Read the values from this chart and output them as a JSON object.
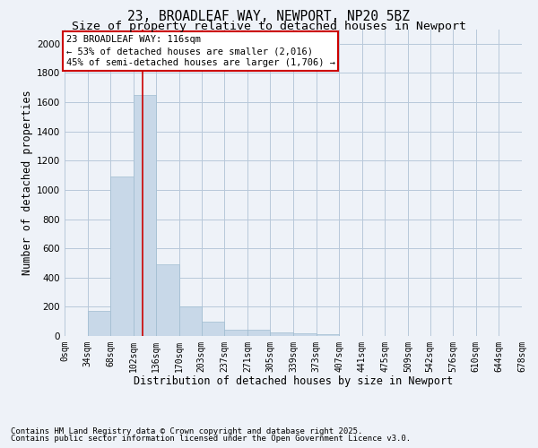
{
  "title1": "23, BROADLEAF WAY, NEWPORT, NP20 5BZ",
  "title2": "Size of property relative to detached houses in Newport",
  "xlabel": "Distribution of detached houses by size in Newport",
  "ylabel": "Number of detached properties",
  "bar_color": "#c8d8e8",
  "bar_edgecolor": "#a0bcd0",
  "bar_linewidth": 0.5,
  "vline_x": 116,
  "vline_color": "#cc0000",
  "annotation_box_text": "23 BROADLEAF WAY: 116sqm\n← 53% of detached houses are smaller (2,016)\n45% of semi-detached houses are larger (1,706) →",
  "annotation_box_color": "#cc0000",
  "annotation_box_facecolor": "white",
  "footnote1": "Contains HM Land Registry data © Crown copyright and database right 2025.",
  "footnote2": "Contains public sector information licensed under the Open Government Licence v3.0.",
  "bg_color": "#eef2f8",
  "ylim": [
    0,
    2100
  ],
  "yticks": [
    0,
    200,
    400,
    600,
    800,
    1000,
    1200,
    1400,
    1600,
    1800,
    2000
  ],
  "bin_edges": [
    0,
    34,
    68,
    102,
    136,
    170,
    203,
    237,
    271,
    305,
    339,
    373,
    407,
    441,
    475,
    509,
    542,
    576,
    610,
    644,
    678
  ],
  "bar_heights": [
    0,
    170,
    1090,
    1650,
    490,
    200,
    100,
    45,
    40,
    25,
    20,
    12,
    0,
    0,
    0,
    0,
    0,
    0,
    0,
    0
  ],
  "tick_labels": [
    "0sqm",
    "34sqm",
    "68sqm",
    "102sqm",
    "136sqm",
    "170sqm",
    "203sqm",
    "237sqm",
    "271sqm",
    "305sqm",
    "339sqm",
    "373sqm",
    "407sqm",
    "441sqm",
    "475sqm",
    "509sqm",
    "542sqm",
    "576sqm",
    "610sqm",
    "644sqm",
    "678sqm"
  ],
  "grid_color": "#b8c8da",
  "title_fontsize": 10.5,
  "subtitle_fontsize": 9.5,
  "tick_fontsize": 7,
  "label_fontsize": 8.5,
  "footnote_fontsize": 6.5,
  "annotation_fontsize": 7.5
}
